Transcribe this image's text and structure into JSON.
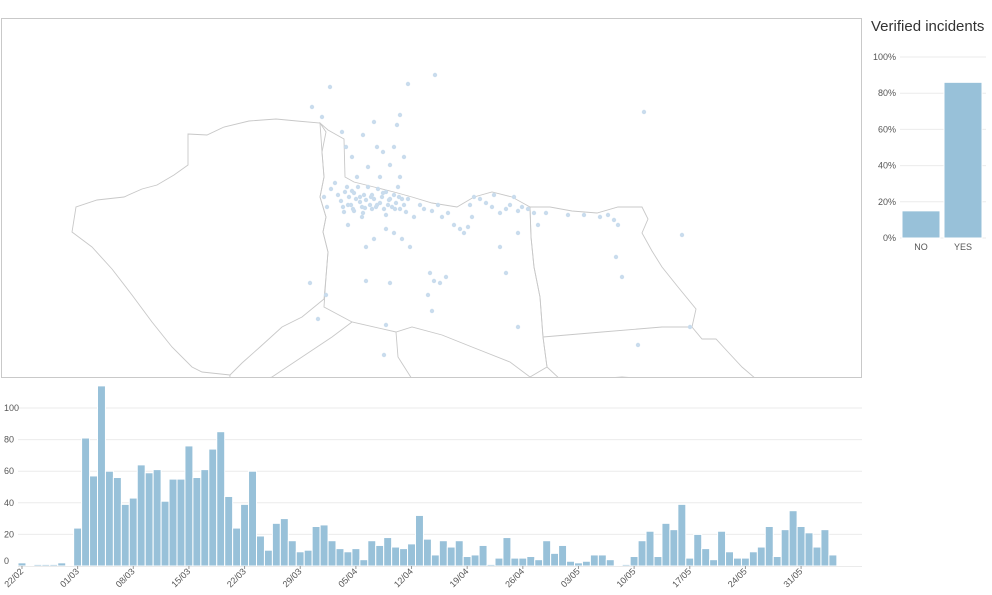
{
  "map": {
    "points": [
      [
        322,
        160
      ],
      [
        325,
        170
      ],
      [
        329,
        152
      ],
      [
        333,
        146
      ],
      [
        336,
        158
      ],
      [
        339,
        164
      ],
      [
        341,
        170
      ],
      [
        343,
        155
      ],
      [
        345,
        150
      ],
      [
        347,
        160
      ],
      [
        349,
        168
      ],
      [
        351,
        172
      ],
      [
        352,
        156
      ],
      [
        354,
        162
      ],
      [
        356,
        150
      ],
      [
        358,
        165
      ],
      [
        360,
        170
      ],
      [
        362,
        158
      ],
      [
        364,
        163
      ],
      [
        366,
        150
      ],
      [
        368,
        168
      ],
      [
        370,
        158
      ],
      [
        372,
        162
      ],
      [
        374,
        170
      ],
      [
        376,
        152
      ],
      [
        378,
        166
      ],
      [
        380,
        160
      ],
      [
        382,
        172
      ],
      [
        384,
        155
      ],
      [
        386,
        168
      ],
      [
        388,
        162
      ],
      [
        390,
        170
      ],
      [
        392,
        158
      ],
      [
        394,
        166
      ],
      [
        396,
        150
      ],
      [
        398,
        172
      ],
      [
        400,
        162
      ],
      [
        402,
        168
      ],
      [
        404,
        175
      ],
      [
        406,
        162
      ],
      [
        342,
        175
      ],
      [
        346,
        168
      ],
      [
        352,
        174
      ],
      [
        358,
        160
      ],
      [
        363,
        171
      ],
      [
        369,
        160
      ],
      [
        375,
        168
      ],
      [
        381,
        156
      ],
      [
        387,
        163
      ],
      [
        393,
        172
      ],
      [
        350,
        154
      ],
      [
        361,
        176
      ],
      [
        370,
        172
      ],
      [
        384,
        178
      ],
      [
        397,
        160
      ],
      [
        340,
        95
      ],
      [
        344,
        110
      ],
      [
        350,
        120
      ],
      [
        355,
        140
      ],
      [
        361,
        98
      ],
      [
        366,
        130
      ],
      [
        372,
        85
      ],
      [
        375,
        110
      ],
      [
        378,
        140
      ],
      [
        381,
        115
      ],
      [
        388,
        128
      ],
      [
        392,
        110
      ],
      [
        395,
        88
      ],
      [
        398,
        140
      ],
      [
        402,
        120
      ],
      [
        320,
        80
      ],
      [
        328,
        50
      ],
      [
        310,
        70
      ],
      [
        406,
        47
      ],
      [
        433,
        38
      ],
      [
        398,
        78
      ],
      [
        418,
        168
      ],
      [
        422,
        172
      ],
      [
        430,
        174
      ],
      [
        436,
        168
      ],
      [
        440,
        180
      ],
      [
        446,
        176
      ],
      [
        452,
        188
      ],
      [
        458,
        192
      ],
      [
        462,
        196
      ],
      [
        466,
        190
      ],
      [
        470,
        180
      ],
      [
        468,
        168
      ],
      [
        472,
        160
      ],
      [
        478,
        162
      ],
      [
        484,
        166
      ],
      [
        490,
        170
      ],
      [
        492,
        158
      ],
      [
        498,
        176
      ],
      [
        504,
        172
      ],
      [
        508,
        168
      ],
      [
        512,
        160
      ],
      [
        516,
        174
      ],
      [
        520,
        170
      ],
      [
        526,
        172
      ],
      [
        532,
        176
      ],
      [
        536,
        188
      ],
      [
        544,
        176
      ],
      [
        516,
        196
      ],
      [
        504,
        236
      ],
      [
        498,
        210
      ],
      [
        408,
        210
      ],
      [
        412,
        180
      ],
      [
        384,
        192
      ],
      [
        392,
        196
      ],
      [
        372,
        202
      ],
      [
        360,
        180
      ],
      [
        346,
        188
      ],
      [
        364,
        210
      ],
      [
        400,
        202
      ],
      [
        428,
        236
      ],
      [
        432,
        244
      ],
      [
        438,
        246
      ],
      [
        444,
        240
      ],
      [
        426,
        258
      ],
      [
        430,
        274
      ],
      [
        388,
        246
      ],
      [
        364,
        244
      ],
      [
        308,
        246
      ],
      [
        324,
        258
      ],
      [
        316,
        282
      ],
      [
        384,
        288
      ],
      [
        382,
        318
      ],
      [
        414,
        349
      ],
      [
        358,
        358
      ],
      [
        360,
        370
      ],
      [
        516,
        290
      ],
      [
        606,
        178
      ],
      [
        612,
        183
      ],
      [
        616,
        188
      ],
      [
        614,
        220
      ],
      [
        620,
        240
      ],
      [
        636,
        308
      ],
      [
        642,
        75
      ],
      [
        680,
        198
      ],
      [
        688,
        290
      ],
      [
        566,
        178
      ],
      [
        582,
        178
      ],
      [
        598,
        180
      ]
    ]
  },
  "verified": {
    "title": "Verified incidents",
    "categories": [
      "NO",
      "YES"
    ],
    "values": [
      15,
      86
    ],
    "y_ticks": [
      "0%",
      "20%",
      "40%",
      "60%",
      "80%",
      "100%"
    ],
    "ylim": [
      0,
      100
    ]
  },
  "chart_data": {
    "type": "bar",
    "x_tick_labels": [
      "22/02",
      "01/03",
      "08/03",
      "15/03",
      "22/03",
      "29/03",
      "05/04",
      "12/04",
      "19/04",
      "26/04",
      "03/05",
      "10/05",
      "17/05",
      "24/05",
      "31/05"
    ],
    "x_tick_days": [
      0,
      7,
      14,
      21,
      28,
      35,
      42,
      49,
      56,
      63,
      70,
      77,
      84,
      91,
      98
    ],
    "values": [
      2,
      0,
      1,
      1,
      1,
      2,
      0,
      24,
      81,
      57,
      114,
      60,
      56,
      39,
      43,
      64,
      59,
      61,
      41,
      55,
      55,
      76,
      56,
      61,
      74,
      85,
      44,
      24,
      39,
      60,
      19,
      10,
      27,
      30,
      16,
      9,
      10,
      25,
      26,
      16,
      11,
      9,
      11,
      4,
      16,
      13,
      18,
      12,
      11,
      14,
      32,
      17,
      7,
      16,
      12,
      16,
      6,
      7,
      13,
      1,
      5,
      18,
      5,
      5,
      6,
      4,
      16,
      8,
      13,
      3,
      2,
      3,
      7,
      7,
      4,
      0,
      1,
      6,
      16,
      22,
      6,
      27,
      23,
      39,
      5,
      20,
      11,
      4,
      22,
      9,
      5,
      5,
      9,
      12,
      25,
      6,
      23,
      35,
      25,
      21,
      12,
      23,
      7
    ],
    "ylim": [
      0,
      120
    ],
    "y_ticks": [
      0,
      20,
      40,
      60,
      80,
      100
    ],
    "grid": true
  }
}
